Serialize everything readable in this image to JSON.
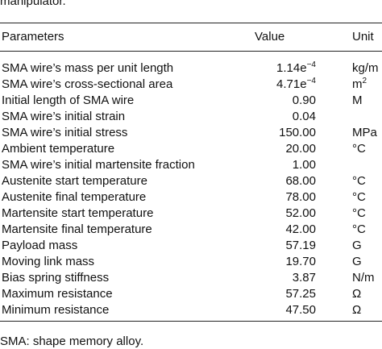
{
  "caption_tail": "manipulator.",
  "table": {
    "header": [
      "Parameters",
      "Value",
      "Unit"
    ],
    "rows": [
      {
        "parameter": "SMA wire’s mass per unit length",
        "value": {
          "base": "1.14e",
          "exp": "−4"
        },
        "unit": "kg/m"
      },
      {
        "parameter": "SMA wire’s cross-sectional area",
        "value": {
          "base": "4.71e",
          "exp": "−4"
        },
        "unit": {
          "base": "m",
          "exp": "2"
        }
      },
      {
        "parameter": "Initial length of SMA wire",
        "value": "0.90",
        "unit": "M"
      },
      {
        "parameter": "SMA wire’s initial strain",
        "value": "0.04"
      },
      {
        "parameter": "SMA wire’s initial stress",
        "value": "150.00",
        "unit": "MPa"
      },
      {
        "parameter": "Ambient temperature",
        "value": "20.00",
        "unit": "°C"
      },
      {
        "parameter": "SMA wire’s initial martensite fraction",
        "value": "1.00"
      },
      {
        "parameter": "Austenite start temperature",
        "value": "68.00",
        "unit": "°C"
      },
      {
        "parameter": "Austenite final temperature",
        "value": "78.00",
        "unit": "°C"
      },
      {
        "parameter": "Martensite start temperature",
        "value": "52.00",
        "unit": "°C"
      },
      {
        "parameter": "Martensite final temperature",
        "value": "42.00",
        "unit": "°C"
      },
      {
        "parameter": "Payload mass",
        "value": "57.19",
        "unit": "G"
      },
      {
        "parameter": "Moving link mass",
        "value": "19.70",
        "unit": "G"
      },
      {
        "parameter": "Bias spring stiffness",
        "value": "3.87",
        "unit": "N/m"
      },
      {
        "parameter": "Maximum resistance",
        "value": "57.25",
        "unit": "Ω"
      },
      {
        "parameter": "Minimum resistance",
        "value": "47.50",
        "unit": "Ω"
      }
    ]
  },
  "footnote": "SMA: shape memory alloy."
}
